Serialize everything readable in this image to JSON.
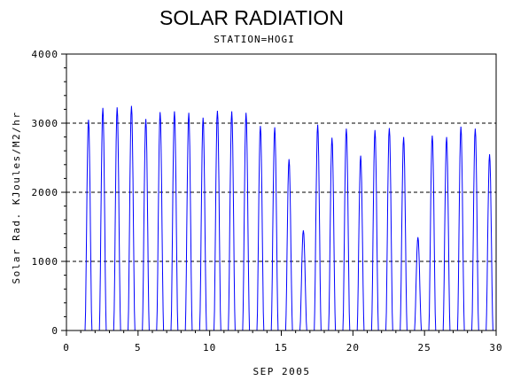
{
  "chart_data": {
    "type": "line",
    "title": "SOLAR RADIATION",
    "subtitle": "STATION=HOGI",
    "xlabel": "SEP 2005",
    "ylabel": "Solar Rad. KJoules/M2/hr",
    "xlim": [
      0,
      30
    ],
    "ylim": [
      0,
      4000
    ],
    "x_ticks": [
      0,
      5,
      10,
      15,
      20,
      25,
      30
    ],
    "y_ticks": [
      0,
      1000,
      2000,
      3000,
      4000
    ],
    "grid": "horizontal dashed",
    "series_color": "#0000ff",
    "daily_peaks": [
      {
        "day": 1,
        "peak": 3050
      },
      {
        "day": 2,
        "peak": 3220
      },
      {
        "day": 3,
        "peak": 3230
      },
      {
        "day": 4,
        "peak": 3250
      },
      {
        "day": 5,
        "peak": 3060
      },
      {
        "day": 6,
        "peak": 3160
      },
      {
        "day": 7,
        "peak": 3170
      },
      {
        "day": 8,
        "peak": 3150
      },
      {
        "day": 9,
        "peak": 3080
      },
      {
        "day": 10,
        "peak": 3180
      },
      {
        "day": 11,
        "peak": 3170
      },
      {
        "day": 12,
        "peak": 3150
      },
      {
        "day": 13,
        "peak": 2960
      },
      {
        "day": 14,
        "peak": 2940
      },
      {
        "day": 15,
        "peak": 2480
      },
      {
        "day": 16,
        "peak": 1450
      },
      {
        "day": 17,
        "peak": 2980
      },
      {
        "day": 18,
        "peak": 2790
      },
      {
        "day": 19,
        "peak": 2920
      },
      {
        "day": 20,
        "peak": 2530
      },
      {
        "day": 21,
        "peak": 2900
      },
      {
        "day": 22,
        "peak": 2930
      },
      {
        "day": 23,
        "peak": 2800
      },
      {
        "day": 24,
        "peak": 1350
      },
      {
        "day": 25,
        "peak": 2820
      },
      {
        "day": 26,
        "peak": 2800
      },
      {
        "day": 27,
        "peak": 2950
      },
      {
        "day": 28,
        "peak": 2920
      },
      {
        "day": 29,
        "peak": 2550
      }
    ]
  }
}
